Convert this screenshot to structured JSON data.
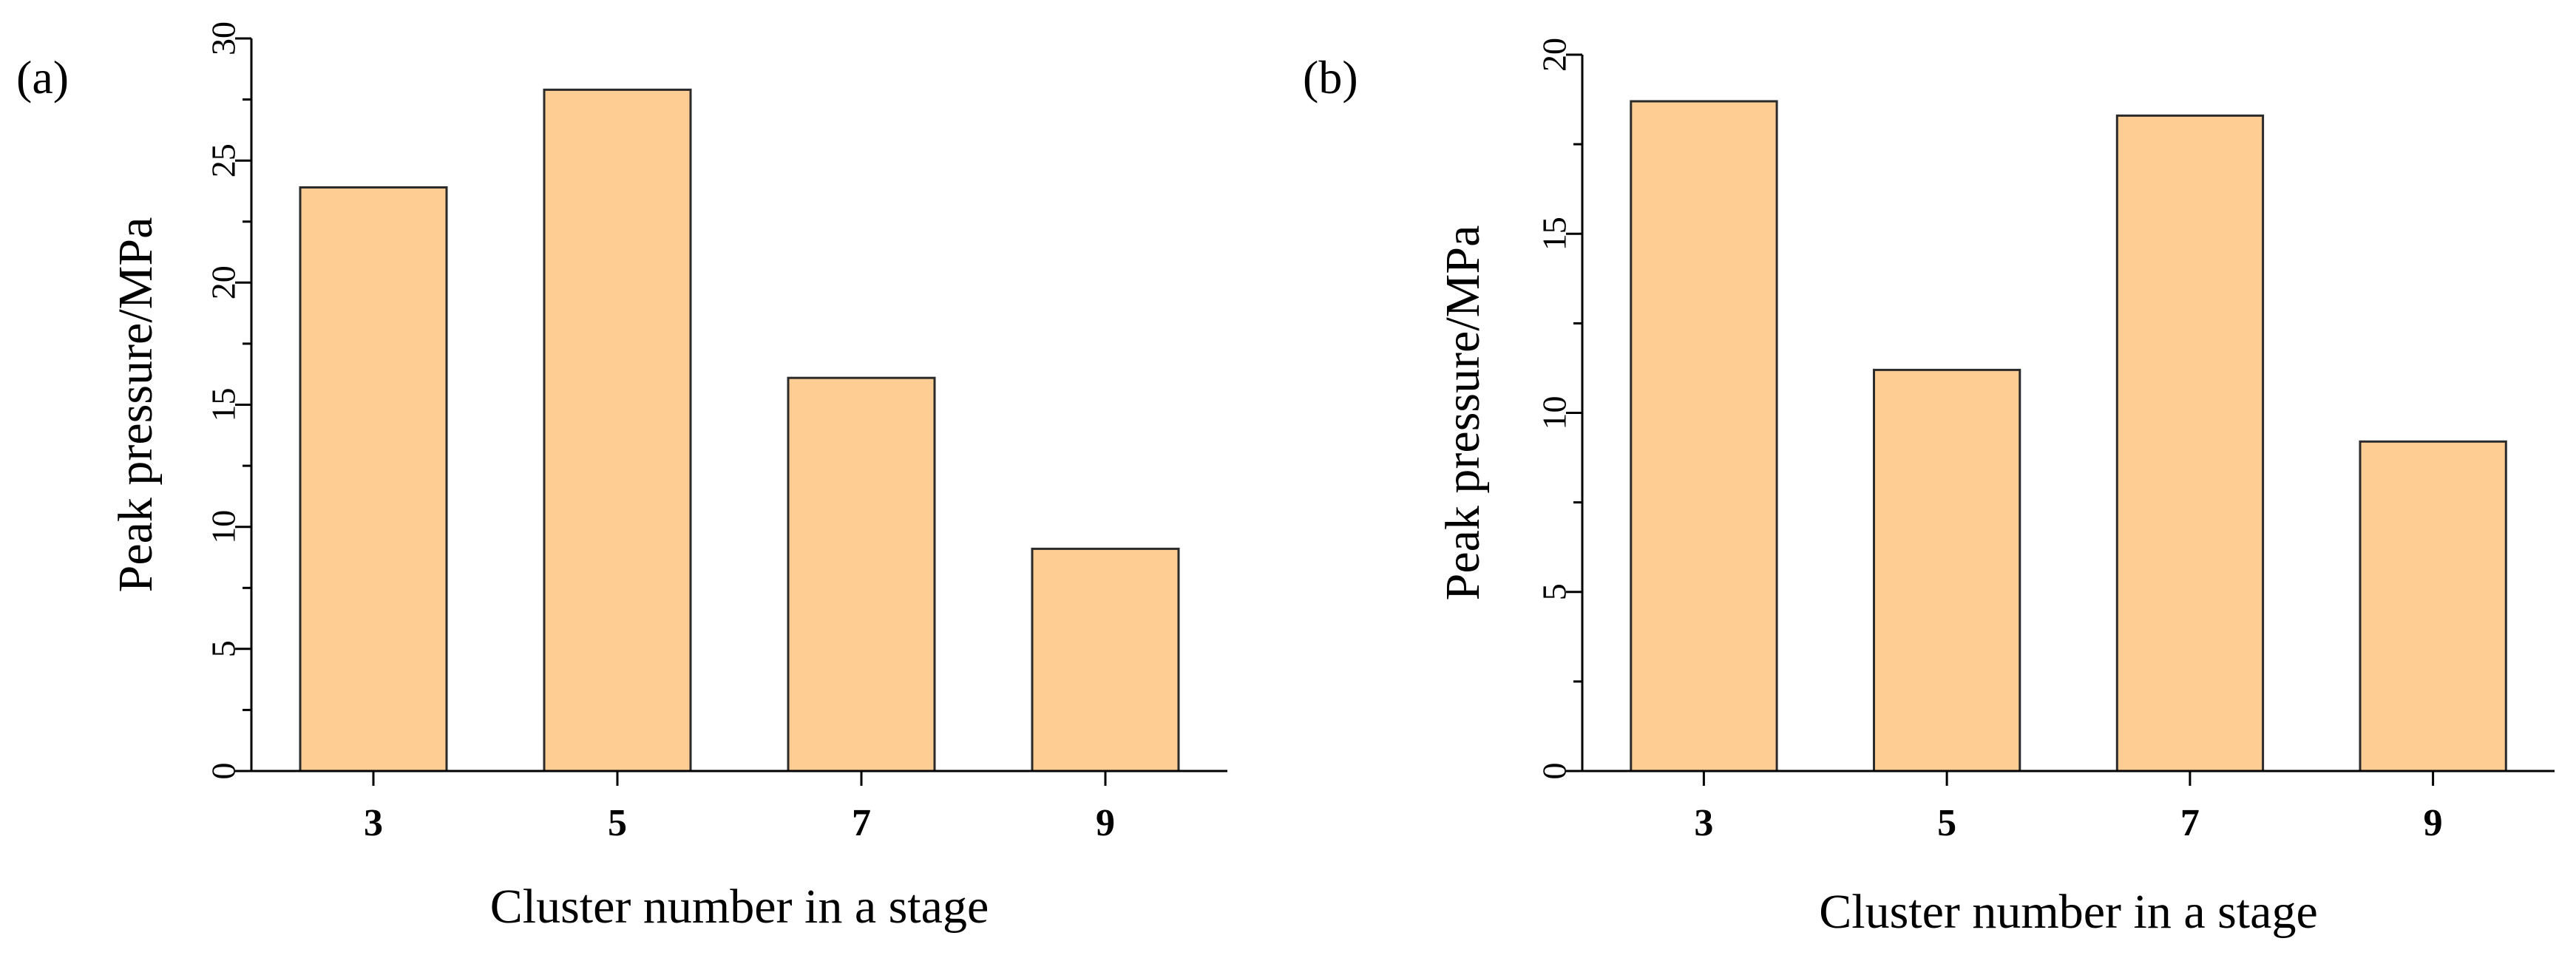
{
  "chart_data": [
    {
      "type": "bar",
      "panel_label": "(a)",
      "categories": [
        "3",
        "5",
        "7",
        "9"
      ],
      "values": [
        23.9,
        27.9,
        16.1,
        9.1
      ],
      "title": "",
      "xlabel": "Cluster number in a stage",
      "ylabel": "Peak pressure/MPa",
      "ylim": [
        0,
        30
      ],
      "yticks": [
        0,
        5,
        10,
        15,
        20,
        25,
        30
      ],
      "grid": false,
      "bar_color": "#FECD94"
    },
    {
      "type": "bar",
      "panel_label": "(b)",
      "categories": [
        "3",
        "5",
        "7",
        "9"
      ],
      "values": [
        18.7,
        11.2,
        18.3,
        9.2
      ],
      "title": "",
      "xlabel": "Cluster number in a stage",
      "ylabel": "Peak pressure/MPa",
      "ylim": [
        0,
        20
      ],
      "yticks": [
        0,
        5,
        10,
        15,
        20
      ],
      "grid": false,
      "bar_color": "#FECD94"
    }
  ]
}
